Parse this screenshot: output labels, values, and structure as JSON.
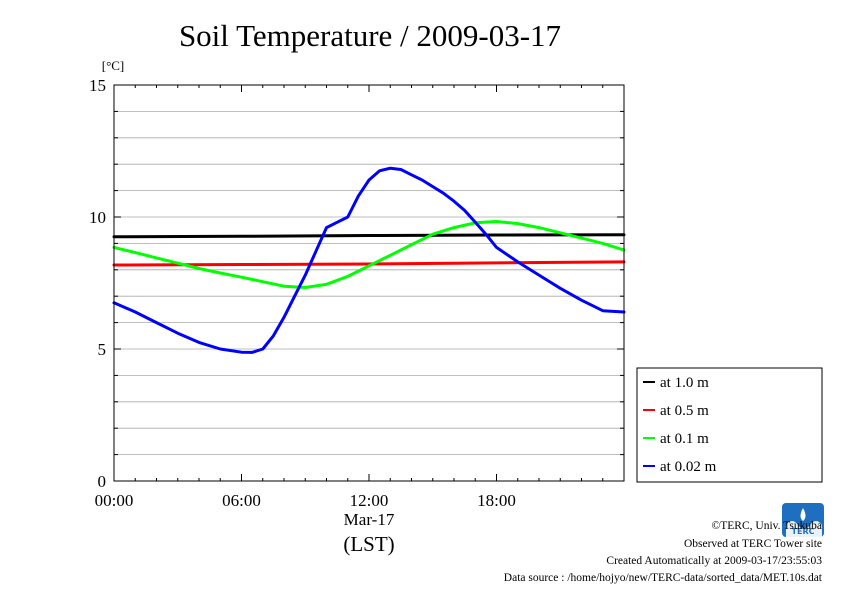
{
  "chart_data": {
    "type": "line",
    "title": "Soil Temperature / 2009-03-17",
    "ylabel": "[°C]",
    "xlabel": "(LST)",
    "x_date_label": "Mar-17",
    "ylim": [
      0,
      15
    ],
    "y_ticks": [
      "0",
      "5",
      "10",
      "15"
    ],
    "xlim_hours": [
      0,
      24
    ],
    "x_ticks": [
      {
        "hour": 0,
        "label": "00:00"
      },
      {
        "hour": 6,
        "label": "06:00"
      },
      {
        "hour": 12,
        "label": "12:00"
      },
      {
        "hour": 18,
        "label": "18:00"
      }
    ],
    "grid": true,
    "legend_position": "right",
    "series": [
      {
        "name": "at 1.0 m",
        "color": "#000000",
        "x": [
          0,
          6,
          12,
          18,
          24
        ],
        "y": [
          9.25,
          9.27,
          9.3,
          9.32,
          9.33
        ]
      },
      {
        "name": "at 0.5 m",
        "color": "#ff0000",
        "x": [
          0,
          6,
          12,
          18,
          24
        ],
        "y": [
          8.18,
          8.2,
          8.22,
          8.26,
          8.3
        ]
      },
      {
        "name": "at 0.1 m",
        "color": "#00ff00",
        "x": [
          0,
          1,
          2,
          3,
          4,
          5,
          6,
          7,
          8,
          9,
          10,
          11,
          12,
          13,
          14,
          15,
          16,
          17,
          18,
          19,
          20,
          21,
          22,
          23,
          24
        ],
        "y": [
          8.85,
          8.65,
          8.45,
          8.25,
          8.05,
          7.88,
          7.72,
          7.55,
          7.38,
          7.33,
          7.45,
          7.75,
          8.15,
          8.55,
          8.95,
          9.35,
          9.6,
          9.78,
          9.83,
          9.75,
          9.6,
          9.4,
          9.2,
          9.0,
          8.75
        ]
      },
      {
        "name": "at 0.02 m",
        "color": "#0000ff",
        "x": [
          0,
          1,
          2,
          3,
          4,
          5,
          6,
          6.5,
          7,
          7.5,
          8,
          8.5,
          9,
          9.5,
          10,
          10.5,
          11,
          11.5,
          12,
          12.5,
          13,
          13.5,
          14,
          14.5,
          15,
          15.5,
          16,
          16.5,
          17,
          17.5,
          18,
          19,
          20,
          21,
          22,
          23,
          24
        ],
        "y": [
          6.75,
          6.4,
          6.0,
          5.6,
          5.25,
          5.0,
          4.88,
          4.87,
          5.0,
          5.5,
          6.2,
          7.0,
          7.8,
          8.7,
          9.6,
          9.8,
          10.0,
          10.8,
          11.4,
          11.75,
          11.85,
          11.8,
          11.6,
          11.4,
          11.15,
          10.9,
          10.6,
          10.25,
          9.8,
          9.35,
          8.85,
          8.3,
          7.8,
          7.3,
          6.85,
          6.45,
          6.4
        ]
      }
    ]
  },
  "footer": {
    "copyright": "©TERC, Univ. Tsukuba",
    "observed": "Observed at TERC Tower site",
    "created": "Created Automatically at 2009-03-17/23:55:03",
    "source": "Data source : /home/hojyo/new/TERC-data/sorted_data/MET.10s.dat"
  },
  "logo": {
    "text": "TERC",
    "color": "#1f6fc0"
  }
}
